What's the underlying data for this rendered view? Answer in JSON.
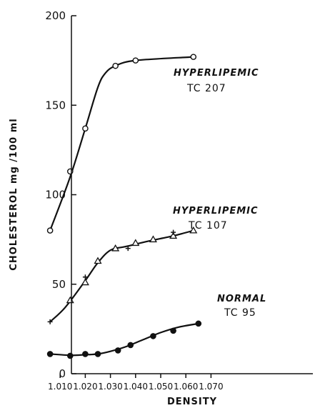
{
  "chart_data": {
    "type": "line",
    "xlabel": "DENSITY",
    "ylabel": "CHOLESTEROL mg /100 ml",
    "xlim": [
      1.004,
      1.072
    ],
    "ylim": [
      0,
      200
    ],
    "x_ticks": [
      "1.010",
      "1.020",
      "1.030",
      "1.040",
      "1.050",
      "1.060",
      "1.070"
    ],
    "y_ticks": [
      "0",
      "50",
      "100",
      "150",
      "200"
    ],
    "grid": false,
    "series": [
      {
        "name": "HYPERLIPEMIC TC 207",
        "marker": "open-circle",
        "points": [
          [
            1.006,
            80
          ],
          [
            1.014,
            113
          ],
          [
            1.02,
            137
          ],
          [
            1.032,
            172
          ],
          [
            1.04,
            175
          ],
          [
            1.063,
            177
          ]
        ],
        "curve": [
          [
            1.006,
            80
          ],
          [
            1.014,
            110
          ],
          [
            1.02,
            137
          ],
          [
            1.025,
            160
          ],
          [
            1.028,
            168
          ],
          [
            1.032,
            172
          ],
          [
            1.04,
            175
          ],
          [
            1.063,
            177
          ]
        ]
      },
      {
        "name": "HYPERLIPEMIC TC 107",
        "marker": "open-triangle",
        "points": [
          [
            1.014,
            41
          ],
          [
            1.02,
            51
          ],
          [
            1.025,
            63
          ],
          [
            1.032,
            70
          ],
          [
            1.04,
            73
          ],
          [
            1.047,
            75
          ],
          [
            1.055,
            77
          ],
          [
            1.063,
            80
          ]
        ],
        "plus_points": [
          [
            1.006,
            29
          ],
          [
            1.02,
            54
          ],
          [
            1.037,
            70
          ],
          [
            1.055,
            79
          ]
        ],
        "curve": [
          [
            1.006,
            29
          ],
          [
            1.012,
            37
          ],
          [
            1.02,
            52
          ],
          [
            1.025,
            62
          ],
          [
            1.03,
            69
          ],
          [
            1.036,
            71
          ],
          [
            1.045,
            74
          ],
          [
            1.055,
            77
          ],
          [
            1.063,
            80
          ]
        ]
      },
      {
        "name": "NORMAL TC 95",
        "marker": "filled-circle",
        "points": [
          [
            1.006,
            11
          ],
          [
            1.014,
            10
          ],
          [
            1.02,
            11
          ],
          [
            1.025,
            11
          ],
          [
            1.033,
            13
          ],
          [
            1.038,
            16
          ],
          [
            1.047,
            21
          ],
          [
            1.055,
            24
          ],
          [
            1.065,
            28
          ]
        ],
        "curve": [
          [
            1.006,
            11
          ],
          [
            1.014,
            10.3
          ],
          [
            1.02,
            10.6
          ],
          [
            1.025,
            11
          ],
          [
            1.03,
            12.5
          ],
          [
            1.036,
            15
          ],
          [
            1.043,
            19
          ],
          [
            1.05,
            23
          ],
          [
            1.057,
            26
          ],
          [
            1.065,
            28
          ]
        ]
      }
    ],
    "annotations": [
      {
        "lines": [
          "HYPERLIPEMIC",
          "TC 207"
        ]
      },
      {
        "lines": [
          "HYPERLIPEMIC",
          "TC 107"
        ]
      },
      {
        "lines": [
          "NORMAL",
          "TC 95"
        ]
      }
    ]
  }
}
